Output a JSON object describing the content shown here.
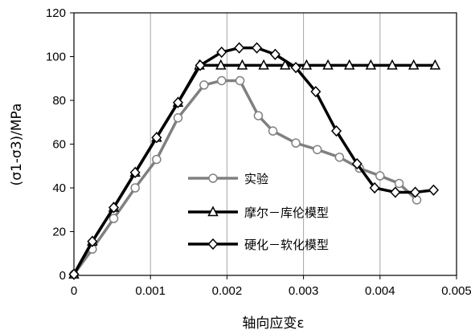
{
  "chart_data": {
    "type": "line",
    "xlabel": "轴向应变ε",
    "ylabel": "(σ1-σ3)/MPa",
    "xlim": [
      0,
      0.005
    ],
    "ylim": [
      0,
      120
    ],
    "xticks": [
      "0",
      "0.001",
      "0.002",
      "0.003",
      "0.004",
      "0.005"
    ],
    "yticks": [
      "0",
      "20",
      "40",
      "60",
      "80",
      "100",
      "120"
    ],
    "grid": "vertical",
    "legend_position": "center",
    "series": [
      {
        "name": "实验",
        "color": "#808080",
        "marker": "circle",
        "x": [
          0,
          0.00024,
          0.00052,
          0.0008,
          0.00108,
          0.00136,
          0.0017,
          0.00193,
          0.00217,
          0.00241,
          0.0026,
          0.0029,
          0.00318,
          0.00347,
          0.00373,
          0.004,
          0.00425,
          0.00448
        ],
        "y": [
          0.5,
          12,
          26,
          40,
          53,
          72,
          87,
          89,
          89,
          73,
          66,
          60.5,
          57.5,
          54,
          49,
          45.5,
          42,
          34.5
        ]
      },
      {
        "name": "摩尔－库伦模型",
        "color": "#000000",
        "marker": "triangle",
        "x": [
          0,
          0.00024,
          0.00052,
          0.0008,
          0.00108,
          0.00136,
          0.00164,
          0.00192,
          0.0022,
          0.00248,
          0.00276,
          0.00304,
          0.00332,
          0.0036,
          0.00388,
          0.00416,
          0.00444,
          0.00472
        ],
        "y": [
          0.5,
          15.5,
          31,
          47,
          63,
          79,
          96,
          96,
          96,
          96,
          96,
          96,
          96,
          96,
          96,
          96,
          96,
          96
        ]
      },
      {
        "name": "硬化－软化模型",
        "color": "#000000",
        "marker": "diamond",
        "x": [
          0,
          0.00024,
          0.00052,
          0.0008,
          0.00108,
          0.00136,
          0.00165,
          0.00193,
          0.00216,
          0.00239,
          0.00263,
          0.0029,
          0.00316,
          0.00343,
          0.0037,
          0.00393,
          0.0042,
          0.00446,
          0.0047
        ],
        "y": [
          0.5,
          15.5,
          31,
          47,
          63,
          79,
          96,
          102,
          104,
          104,
          101,
          95,
          84,
          66,
          51,
          40,
          38,
          38,
          39
        ]
      }
    ]
  }
}
